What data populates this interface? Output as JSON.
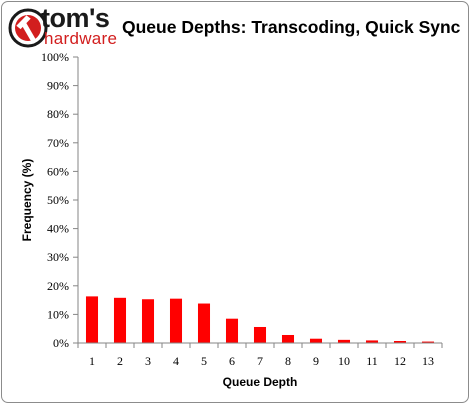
{
  "header": {
    "logo_primary": "tom's",
    "logo_secondary": "hardware"
  },
  "chart_data": {
    "type": "bar",
    "title": "Queue Depths: Transcoding, Quick Sync",
    "xlabel": "Queue Depth",
    "ylabel": "Frequency (%)",
    "categories": [
      "1",
      "2",
      "3",
      "4",
      "5",
      "6",
      "7",
      "8",
      "9",
      "10",
      "11",
      "12",
      "13"
    ],
    "values": [
      16.3,
      15.8,
      15.3,
      15.5,
      13.8,
      8.5,
      5.6,
      2.8,
      1.5,
      1.1,
      0.9,
      0.7,
      0.5
    ],
    "ylim": [
      0,
      100
    ],
    "yticks": [
      "0%",
      "10%",
      "20%",
      "30%",
      "40%",
      "50%",
      "60%",
      "70%",
      "80%",
      "90%",
      "100%"
    ],
    "grid": false,
    "legend": "none",
    "bar_color": "#ff0000",
    "accent_color": "#d21e1e"
  }
}
